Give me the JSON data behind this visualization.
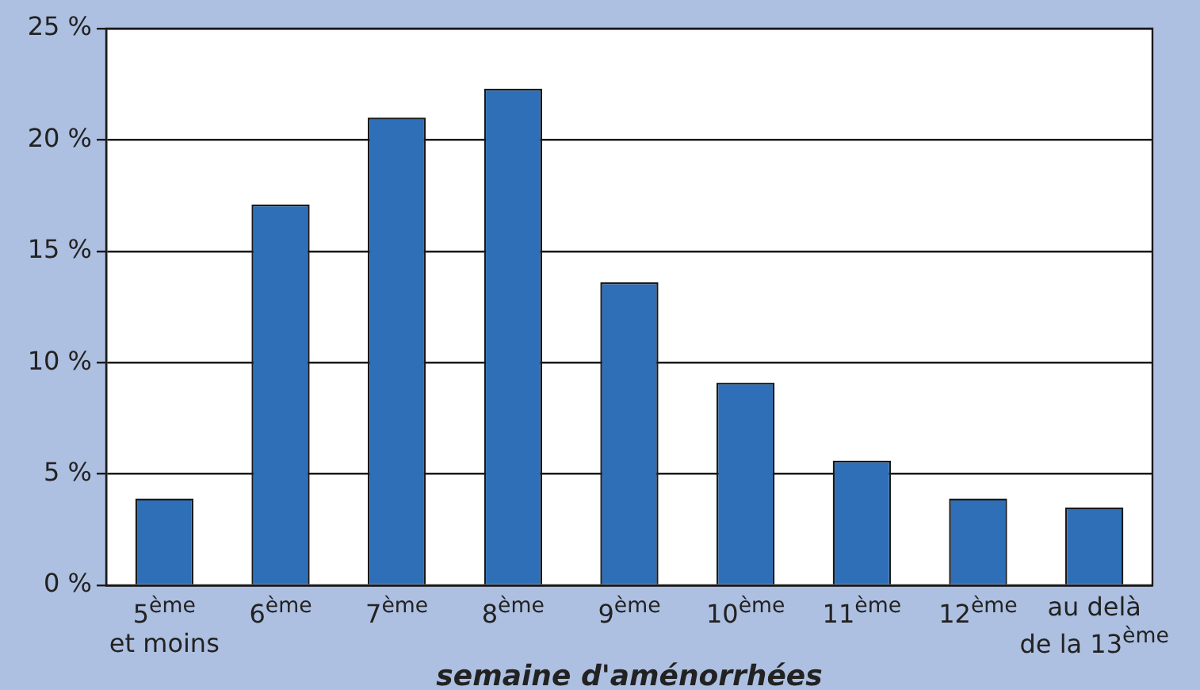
{
  "chart_data": {
    "type": "bar",
    "xlabel": "semaine d'aménorrhées",
    "categories": [
      "5$^{ème}$\net moins",
      "6$^{ème}$",
      "7$^{ème}$",
      "8$^{ème}$",
      "9$^{ème}$",
      "10$^{ème}$",
      "11$^{ème}$",
      "12$^{ème}$",
      "au delà\nde la 13$^{ème}$"
    ],
    "values": [
      3.9,
      17.1,
      21.0,
      22.3,
      13.6,
      9.1,
      5.6,
      3.9,
      3.5
    ],
    "color": "#2e6fb8",
    "ylim": [
      0,
      25
    ],
    "yticks": [
      {
        "value": 0,
        "label": "0 %"
      },
      {
        "value": 5,
        "label": "5 %"
      },
      {
        "value": 10,
        "label": "10 %"
      },
      {
        "value": 15,
        "label": "15 %"
      },
      {
        "value": 20,
        "label": "20 %"
      },
      {
        "value": 25,
        "label": "25 %"
      }
    ],
    "grid": "y",
    "legend": false
  }
}
